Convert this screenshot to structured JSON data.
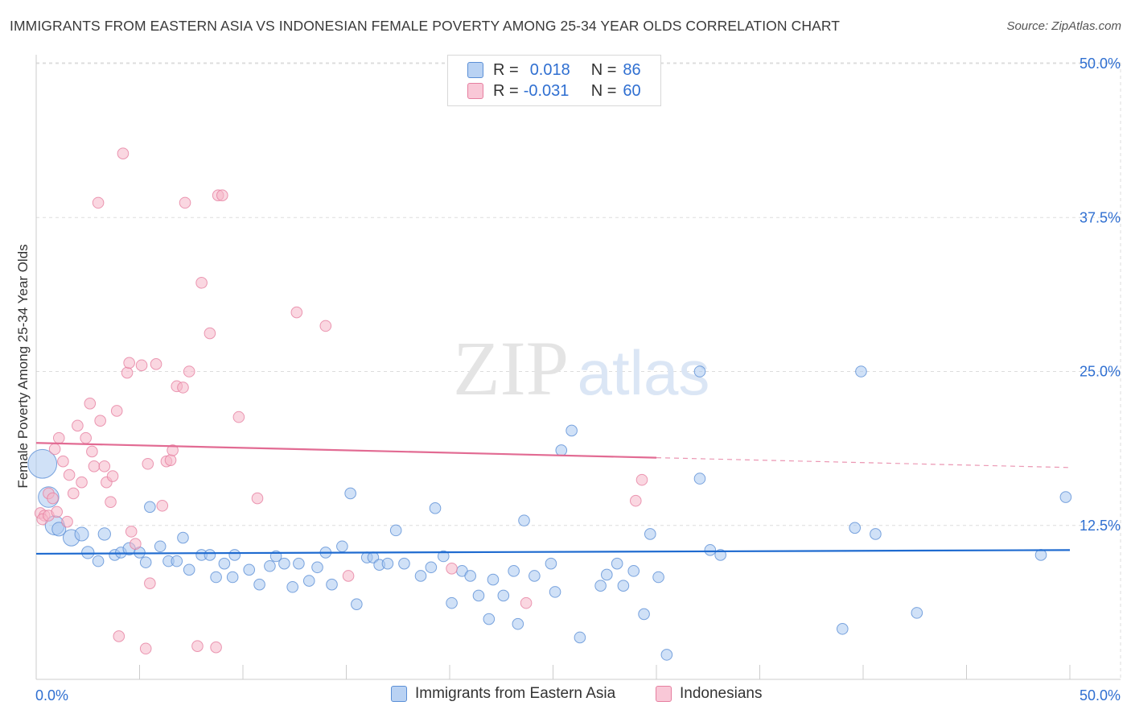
{
  "title": "IMMIGRANTS FROM EASTERN ASIA VS INDONESIAN FEMALE POVERTY AMONG 25-34 YEAR OLDS CORRELATION CHART",
  "source": "Source: ZipAtlas.com",
  "watermark": {
    "zip": "ZIP",
    "atlas": "atlas"
  },
  "legend": {
    "r_label": "R =",
    "n_label": "N =",
    "series1": {
      "r": "0.018",
      "n": "86"
    },
    "series2": {
      "r": "-0.031",
      "n": "60"
    }
  },
  "colors": {
    "blue_fill": "#a9c8f0",
    "blue_stroke": "#5b8fd6",
    "blue_line": "#1f6bd0",
    "pink_fill": "#f6b6c9",
    "pink_stroke": "#e67fa0",
    "pink_line": "#e26b93",
    "tick_text": "#2f6fd1",
    "grid": "#dddddd"
  },
  "chart_data": {
    "type": "scatter",
    "title": "IMMIGRANTS FROM EASTERN ASIA VS INDONESIAN FEMALE POVERTY AMONG 25-34 YEAR OLDS CORRELATION CHART",
    "xlabel": "",
    "ylabel": "Female Poverty Among 25-34 Year Olds",
    "xlim": [
      0,
      50
    ],
    "ylim": [
      0,
      50
    ],
    "x_tick_labels": [
      {
        "value": 0,
        "label": "0.0%"
      },
      {
        "value": 50,
        "label": "50.0%"
      }
    ],
    "y_tick_labels": [
      {
        "value": 12.5,
        "label": "12.5%"
      },
      {
        "value": 25.0,
        "label": "25.0%"
      },
      {
        "value": 37.5,
        "label": "37.5%"
      },
      {
        "value": 50.0,
        "label": "50.0%"
      }
    ],
    "grid": true,
    "series": [
      {
        "name": "Immigrants from Eastern Asia",
        "color": "#a9c8f0",
        "r": 0.018,
        "n": 86,
        "trend": {
          "x": [
            0,
            50
          ],
          "y": [
            10.2,
            10.5
          ]
        },
        "points": [
          [
            0.3,
            17.5,
            2.1
          ],
          [
            0.6,
            14.8,
            1.5
          ],
          [
            0.9,
            12.5,
            1.4
          ],
          [
            1.1,
            12.2,
            1.0
          ],
          [
            1.7,
            11.5,
            1.2
          ],
          [
            2.2,
            11.8,
            1.0
          ],
          [
            2.5,
            10.3,
            0.9
          ],
          [
            3.0,
            9.6,
            0.8
          ],
          [
            3.3,
            11.8,
            0.9
          ],
          [
            3.8,
            10.1,
            0.8
          ],
          [
            4.1,
            10.3,
            0.8
          ],
          [
            4.5,
            10.6,
            0.9
          ],
          [
            5.0,
            10.3,
            0.8
          ],
          [
            5.3,
            9.5,
            0.8
          ],
          [
            5.5,
            14.0,
            0.8
          ],
          [
            6.0,
            10.8,
            0.8
          ],
          [
            6.4,
            9.6,
            0.8
          ],
          [
            6.8,
            9.6,
            0.8
          ],
          [
            7.1,
            11.5,
            0.8
          ],
          [
            7.4,
            8.9,
            0.8
          ],
          [
            8.0,
            10.1,
            0.8
          ],
          [
            8.4,
            10.1,
            0.8
          ],
          [
            8.7,
            8.3,
            0.8
          ],
          [
            9.1,
            9.4,
            0.8
          ],
          [
            9.5,
            8.3,
            0.8
          ],
          [
            9.6,
            10.1,
            0.8
          ],
          [
            10.3,
            8.9,
            0.8
          ],
          [
            10.8,
            7.7,
            0.8
          ],
          [
            11.3,
            9.2,
            0.8
          ],
          [
            11.6,
            10.0,
            0.8
          ],
          [
            12.0,
            9.4,
            0.8
          ],
          [
            12.4,
            7.5,
            0.8
          ],
          [
            12.7,
            9.4,
            0.8
          ],
          [
            13.2,
            8.0,
            0.8
          ],
          [
            13.6,
            9.1,
            0.8
          ],
          [
            14.0,
            10.3,
            0.8
          ],
          [
            14.3,
            7.7,
            0.8
          ],
          [
            14.8,
            10.8,
            0.8
          ],
          [
            15.2,
            15.1,
            0.8
          ],
          [
            15.5,
            6.1,
            0.8
          ],
          [
            16.0,
            9.9,
            0.8
          ],
          [
            16.3,
            9.9,
            0.8
          ],
          [
            16.6,
            9.3,
            0.8
          ],
          [
            17.0,
            9.4,
            0.8
          ],
          [
            17.4,
            12.1,
            0.8
          ],
          [
            17.8,
            9.4,
            0.8
          ],
          [
            18.6,
            8.4,
            0.8
          ],
          [
            19.1,
            9.1,
            0.8
          ],
          [
            19.3,
            13.9,
            0.8
          ],
          [
            19.7,
            10.0,
            0.8
          ],
          [
            20.1,
            6.2,
            0.8
          ],
          [
            20.6,
            8.8,
            0.8
          ],
          [
            21.0,
            8.4,
            0.8
          ],
          [
            21.4,
            6.8,
            0.8
          ],
          [
            21.9,
            4.9,
            0.8
          ],
          [
            22.1,
            8.1,
            0.8
          ],
          [
            22.6,
            6.8,
            0.8
          ],
          [
            23.1,
            8.8,
            0.8
          ],
          [
            23.3,
            4.5,
            0.8
          ],
          [
            23.6,
            12.9,
            0.8
          ],
          [
            24.1,
            8.4,
            0.8
          ],
          [
            24.9,
            9.4,
            0.8
          ],
          [
            25.1,
            7.1,
            0.8
          ],
          [
            25.4,
            18.6,
            0.8
          ],
          [
            25.9,
            20.2,
            0.8
          ],
          [
            26.3,
            3.4,
            0.8
          ],
          [
            27.3,
            7.6,
            0.8
          ],
          [
            27.6,
            8.5,
            0.8
          ],
          [
            28.1,
            9.4,
            0.8
          ],
          [
            28.4,
            7.6,
            0.8
          ],
          [
            28.9,
            8.8,
            0.8
          ],
          [
            29.4,
            5.3,
            0.8
          ],
          [
            29.7,
            11.8,
            0.8
          ],
          [
            30.1,
            8.3,
            0.8
          ],
          [
            30.5,
            2.0,
            0.8
          ],
          [
            32.1,
            25.0,
            0.8
          ],
          [
            32.1,
            16.3,
            0.8
          ],
          [
            32.6,
            10.5,
            0.8
          ],
          [
            33.1,
            10.1,
            0.8
          ],
          [
            39.0,
            4.1,
            0.8
          ],
          [
            39.6,
            12.3,
            0.8
          ],
          [
            39.9,
            25.0,
            0.8
          ],
          [
            40.6,
            11.8,
            0.8
          ],
          [
            42.6,
            5.4,
            0.8
          ],
          [
            48.6,
            10.1,
            0.8
          ],
          [
            49.8,
            14.8,
            0.8
          ]
        ]
      },
      {
        "name": "Indonesians",
        "color": "#f6b6c9",
        "r": -0.031,
        "n": 60,
        "trend_solid": {
          "x": [
            0,
            30
          ],
          "y": [
            19.2,
            18.0
          ]
        },
        "trend_dashed": {
          "x": [
            30,
            50
          ],
          "y": [
            18.0,
            17.2
          ]
        },
        "points": [
          [
            0.2,
            13.5,
            0.8
          ],
          [
            0.4,
            13.3,
            0.8
          ],
          [
            0.6,
            15.1,
            0.8
          ],
          [
            0.8,
            14.7,
            0.8
          ],
          [
            0.9,
            18.7,
            0.8
          ],
          [
            1.1,
            19.6,
            0.8
          ],
          [
            1.3,
            17.7,
            0.8
          ],
          [
            1.6,
            16.6,
            0.8
          ],
          [
            1.8,
            15.1,
            0.8
          ],
          [
            2.0,
            20.6,
            0.8
          ],
          [
            2.2,
            16.0,
            0.8
          ],
          [
            2.4,
            19.6,
            0.8
          ],
          [
            2.6,
            22.4,
            0.8
          ],
          [
            2.7,
            18.5,
            0.8
          ],
          [
            2.8,
            17.3,
            0.8
          ],
          [
            3.0,
            38.7,
            0.8
          ],
          [
            3.1,
            21.0,
            0.8
          ],
          [
            3.3,
            17.3,
            0.8
          ],
          [
            3.4,
            16.0,
            0.8
          ],
          [
            3.6,
            14.4,
            0.8
          ],
          [
            3.7,
            16.5,
            0.8
          ],
          [
            3.9,
            21.8,
            0.8
          ],
          [
            4.0,
            3.5,
            0.8
          ],
          [
            4.2,
            42.7,
            0.8
          ],
          [
            4.4,
            24.9,
            0.8
          ],
          [
            4.5,
            25.7,
            0.8
          ],
          [
            4.6,
            12.0,
            0.8
          ],
          [
            4.8,
            11.0,
            0.8
          ],
          [
            5.1,
            25.5,
            0.8
          ],
          [
            5.3,
            2.5,
            0.8
          ],
          [
            5.4,
            17.5,
            0.8
          ],
          [
            5.5,
            7.8,
            0.8
          ],
          [
            5.8,
            25.6,
            0.8
          ],
          [
            6.1,
            14.1,
            0.8
          ],
          [
            6.3,
            17.7,
            0.8
          ],
          [
            6.5,
            17.8,
            0.8
          ],
          [
            6.6,
            18.6,
            0.8
          ],
          [
            6.8,
            23.8,
            0.8
          ],
          [
            7.1,
            23.7,
            0.8
          ],
          [
            7.2,
            38.7,
            0.8
          ],
          [
            7.4,
            25.0,
            0.8
          ],
          [
            7.8,
            2.7,
            0.8
          ],
          [
            8.0,
            32.2,
            0.8
          ],
          [
            8.4,
            28.1,
            0.8
          ],
          [
            8.7,
            2.6,
            0.8
          ],
          [
            8.8,
            39.3,
            0.8
          ],
          [
            9.0,
            39.3,
            0.8
          ],
          [
            9.8,
            21.3,
            0.8
          ],
          [
            10.7,
            14.7,
            0.8
          ],
          [
            12.6,
            29.8,
            0.8
          ],
          [
            14.0,
            28.7,
            0.8
          ],
          [
            15.1,
            8.4,
            0.8
          ],
          [
            20.1,
            9.0,
            0.8
          ],
          [
            23.7,
            6.2,
            0.8
          ],
          [
            29.0,
            14.5,
            0.8
          ],
          [
            29.3,
            16.2,
            0.8
          ],
          [
            0.3,
            13.0,
            0.8
          ],
          [
            0.6,
            13.3,
            0.8
          ],
          [
            1.0,
            13.6,
            0.8
          ],
          [
            1.5,
            12.8,
            0.8
          ]
        ]
      }
    ]
  }
}
